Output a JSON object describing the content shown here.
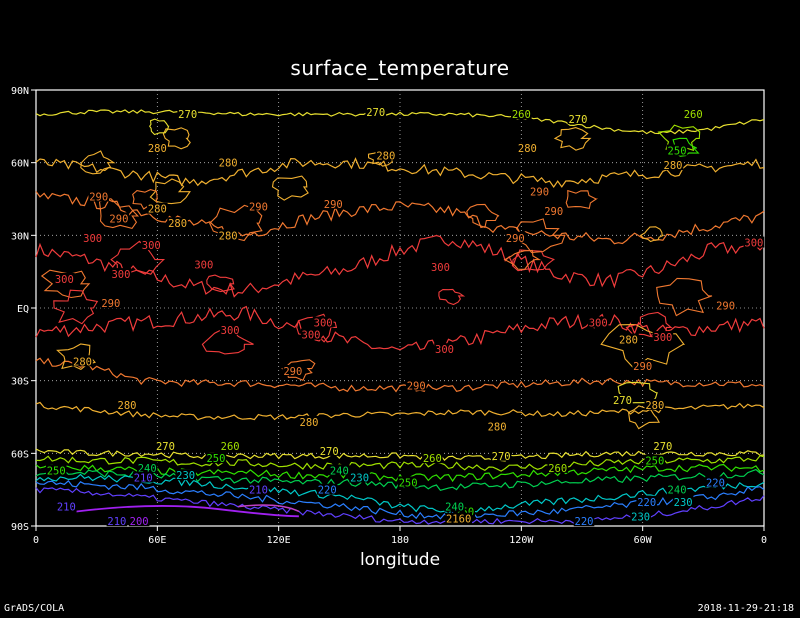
{
  "chart_data": {
    "type": "contour",
    "title": "surface_temperature",
    "xlabel": "longitude",
    "x_ticks": [
      "0",
      "60E",
      "120E",
      "180",
      "120W",
      "60W",
      "0"
    ],
    "y_ticks": [
      "90N",
      "60N",
      "30N",
      "EQ",
      "30S",
      "60S",
      "90S"
    ],
    "grid": true,
    "contour_levels": [
      200,
      210,
      220,
      230,
      240,
      250,
      260,
      270,
      280,
      290,
      300
    ],
    "colors": {
      "200": "#a020f0",
      "210": "#6040ff",
      "220": "#2a7fff",
      "230": "#00c8c8",
      "240": "#00d050",
      "250": "#30e000",
      "260": "#a0e000",
      "270": "#e8e030",
      "280": "#f0b030",
      "290": "#f07830",
      "300": "#f03c3c"
    },
    "contours": [
      {
        "level": 300,
        "lat": [
          24,
          18,
          12,
          8,
          6,
          10,
          14,
          22,
          28,
          22,
          14,
          10,
          14,
          22,
          26
        ],
        "lon_label": [
          10,
          40,
          75,
          95,
          120,
          130,
          150,
          175,
          200,
          230,
          260,
          300,
          335,
          350,
          355
        ]
      },
      {
        "level": 290,
        "lat": [
          48,
          44,
          38,
          32,
          -20,
          -28,
          -36,
          -33,
          -34,
          -33,
          -30,
          -32
        ],
        "lon_label": [
          15,
          30,
          60,
          90,
          95,
          130,
          175,
          215,
          260,
          290,
          320,
          355
        ]
      },
      {
        "level": 280,
        "lat": [
          62,
          58,
          52,
          48,
          -28,
          -42,
          -45,
          -44,
          -44,
          -43,
          -42,
          -40
        ],
        "lon_label": [
          15,
          45,
          95,
          155,
          15,
          75,
          135,
          195,
          255,
          295,
          325,
          355
        ]
      },
      {
        "level": 270,
        "lat": [
          81,
          80,
          78,
          74,
          -60,
          -61,
          -61,
          -62,
          -61,
          -60
        ],
        "lon_label": [
          60,
          120,
          180,
          260,
          20,
          120,
          195,
          250,
          300,
          355
        ]
      },
      {
        "level": 260,
        "lat": [
          78,
          76,
          -60,
          -64,
          -65,
          -64
        ],
        "lon_label": [
          235,
          275,
          80,
          160,
          235,
          300
        ]
      },
      {
        "level": 250,
        "lat": [
          66,
          -66,
          -68,
          -69,
          -67
        ],
        "lon_label": [
          280,
          10,
          90,
          180,
          295
        ]
      },
      {
        "level": 240,
        "lat": [
          -69,
          -70,
          -73,
          -71
        ],
        "lon_label": [
          100,
          170,
          235,
          300
        ]
      },
      {
        "level": 230,
        "lat": [
          -72,
          -74,
          -76,
          -80,
          -75
        ],
        "lon_label": [
          120,
          170,
          230,
          283,
          320
        ]
      },
      {
        "level": 220,
        "lat": [
          -76,
          -80,
          -85,
          -80
        ],
        "lon_label": [
          150,
          240,
          305,
          335
        ]
      },
      {
        "level": 210,
        "lat": [
          -74,
          -78,
          -83,
          -80
        ],
        "lon_label": [
          60,
          120,
          15,
          100
        ]
      },
      {
        "level": 200,
        "lat": [
          -86,
          -84
        ],
        "lon_label": [
          70,
          110
        ]
      }
    ],
    "labels": [
      {
        "t": "270",
        "lon": 75,
        "lat": 80
      },
      {
        "t": "270",
        "lon": 168,
        "lat": 81
      },
      {
        "t": "270",
        "lon": 268,
        "lat": 78
      },
      {
        "t": "260",
        "lon": 240,
        "lat": 80
      },
      {
        "t": "260",
        "lon": 325,
        "lat": 80
      },
      {
        "t": "250",
        "lon": 317,
        "lat": 65
      },
      {
        "t": "280",
        "lon": 60,
        "lat": 66
      },
      {
        "t": "280",
        "lon": 95,
        "lat": 60
      },
      {
        "t": "280",
        "lon": 173,
        "lat": 63
      },
      {
        "t": "280",
        "lon": 243,
        "lat": 66
      },
      {
        "t": "280",
        "lon": 315,
        "lat": 59
      },
      {
        "t": "280",
        "lon": 60,
        "lat": 41
      },
      {
        "t": "280",
        "lon": 70,
        "lat": 35
      },
      {
        "t": "280",
        "lon": 95,
        "lat": 30
      },
      {
        "t": "280",
        "lon": 293,
        "lat": -13
      },
      {
        "t": "290",
        "lon": 31,
        "lat": 46
      },
      {
        "t": "290",
        "lon": 41,
        "lat": 37
      },
      {
        "t": "290",
        "lon": 110,
        "lat": 42
      },
      {
        "t": "290",
        "lon": 147,
        "lat": 43
      },
      {
        "t": "290",
        "lon": 249,
        "lat": 48
      },
      {
        "t": "290",
        "lon": 256,
        "lat": 40
      },
      {
        "t": "290",
        "lon": 237,
        "lat": 29
      },
      {
        "t": "290",
        "lon": 341,
        "lat": 1
      },
      {
        "t": "290",
        "lon": 37,
        "lat": 2
      },
      {
        "t": "290",
        "lon": 127,
        "lat": -26
      },
      {
        "t": "290",
        "lon": 188,
        "lat": -32
      },
      {
        "t": "290",
        "lon": 300,
        "lat": -24
      },
      {
        "t": "300",
        "lon": 28,
        "lat": 29
      },
      {
        "t": "300",
        "lon": 57,
        "lat": 26
      },
      {
        "t": "300",
        "lon": 83,
        "lat": 18
      },
      {
        "t": "300",
        "lon": 14,
        "lat": 12
      },
      {
        "t": "300",
        "lon": 42,
        "lat": 14
      },
      {
        "t": "300",
        "lon": 200,
        "lat": 17
      },
      {
        "t": "300",
        "lon": 355,
        "lat": 27
      },
      {
        "t": "300",
        "lon": 96,
        "lat": -9
      },
      {
        "t": "300",
        "lon": 142,
        "lat": -6
      },
      {
        "t": "300",
        "lon": 136,
        "lat": -11
      },
      {
        "t": "300",
        "lon": 202,
        "lat": -17
      },
      {
        "t": "300",
        "lon": 278,
        "lat": -6
      },
      {
        "t": "300",
        "lon": 310,
        "lat": -12
      },
      {
        "t": "280",
        "lon": 23,
        "lat": -22
      },
      {
        "t": "280",
        "lon": 45,
        "lat": -40
      },
      {
        "t": "280",
        "lon": 135,
        "lat": -47
      },
      {
        "t": "280",
        "lon": 228,
        "lat": -49
      },
      {
        "t": "280",
        "lon": 306,
        "lat": -40
      },
      {
        "t": "270",
        "lon": 290,
        "lat": -38
      },
      {
        "t": "270",
        "lon": 64,
        "lat": -57
      },
      {
        "t": "270",
        "lon": 145,
        "lat": -59
      },
      {
        "t": "270",
        "lon": 230,
        "lat": -61
      },
      {
        "t": "270",
        "lon": 310,
        "lat": -57
      },
      {
        "t": "260",
        "lon": 96,
        "lat": -57
      },
      {
        "t": "260",
        "lon": 196,
        "lat": -62
      },
      {
        "t": "260",
        "lon": 258,
        "lat": -66
      },
      {
        "t": "250",
        "lon": 10,
        "lat": -67
      },
      {
        "t": "250",
        "lon": 89,
        "lat": -62
      },
      {
        "t": "250",
        "lon": 184,
        "lat": -72
      },
      {
        "t": "250",
        "lon": 306,
        "lat": -63
      },
      {
        "t": "250",
        "lon": 212,
        "lat": -84
      },
      {
        "t": "240",
        "lon": 55,
        "lat": -66
      },
      {
        "t": "240",
        "lon": 150,
        "lat": -67
      },
      {
        "t": "240",
        "lon": 207,
        "lat": -82
      },
      {
        "t": "240",
        "lon": 317,
        "lat": -75
      },
      {
        "t": "230",
        "lon": 74,
        "lat": -69
      },
      {
        "t": "230",
        "lon": 160,
        "lat": -70
      },
      {
        "t": "230",
        "lon": 299,
        "lat": -86
      },
      {
        "t": "230",
        "lon": 320,
        "lat": -80
      },
      {
        "t": "220",
        "lon": 144,
        "lat": -75
      },
      {
        "t": "220",
        "lon": 271,
        "lat": -88
      },
      {
        "t": "220",
        "lon": 302,
        "lat": -80
      },
      {
        "t": "220",
        "lon": 336,
        "lat": -72
      },
      {
        "t": "210",
        "lon": 53,
        "lat": -70
      },
      {
        "t": "210",
        "lon": 110,
        "lat": -75
      },
      {
        "t": "210",
        "lon": 15,
        "lat": -82
      },
      {
        "t": "210",
        "lon": 40,
        "lat": -88
      },
      {
        "t": "200",
        "lon": 51,
        "lat": -88
      },
      {
        "t": "2160",
        "lon": 209,
        "lat": -87
      }
    ]
  },
  "footer": {
    "credit": "GrADS/COLA",
    "timestamp": "2018-11-29-21:18"
  }
}
